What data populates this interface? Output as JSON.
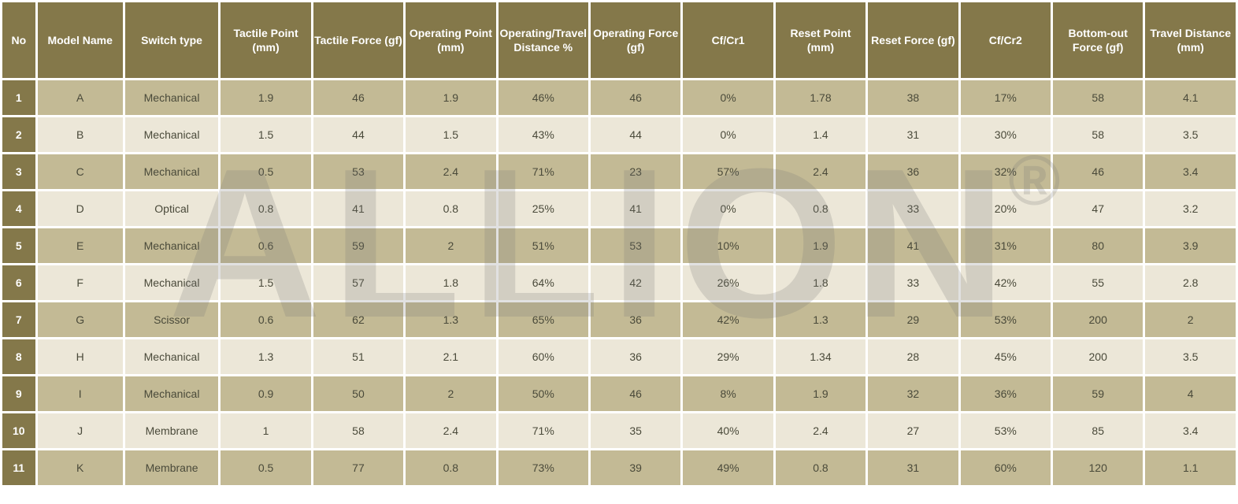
{
  "colors": {
    "header_bg": "#84784a",
    "rownum_bg": "#84784a",
    "odd_bg": "#c3ba95",
    "even_bg": "#ece7d8",
    "text": "#4a4a3a"
  },
  "watermark": {
    "text": "ALLION",
    "symbol": "®"
  },
  "columns": [
    "No",
    "Model Name",
    "Switch type",
    "Tactile Point (mm)",
    "Tactile Force (gf)",
    "Operating Point (mm)",
    "Operating/Travel Distance %",
    "Operating Force (gf)",
    "Cf/Cr1",
    "Reset Point (mm)",
    "Reset Force (gf)",
    "Cf/Cr2",
    "Bottom-out Force (gf)",
    "Travel Distance (mm)"
  ],
  "rows": [
    {
      "no": "1",
      "model": "A",
      "switch": "Mechanical",
      "tp": "1.9",
      "tf": "46",
      "op": "1.9",
      "otd": "46%",
      "of": "46",
      "cf1": "0%",
      "rp": "1.78",
      "rf": "38",
      "cf2": "17%",
      "bof": "58",
      "td": "4.1"
    },
    {
      "no": "2",
      "model": "B",
      "switch": "Mechanical",
      "tp": "1.5",
      "tf": "44",
      "op": "1.5",
      "otd": "43%",
      "of": "44",
      "cf1": "0%",
      "rp": "1.4",
      "rf": "31",
      "cf2": "30%",
      "bof": "58",
      "td": "3.5"
    },
    {
      "no": "3",
      "model": "C",
      "switch": "Mechanical",
      "tp": "0.5",
      "tf": "53",
      "op": "2.4",
      "otd": "71%",
      "of": "23",
      "cf1": "57%",
      "rp": "2.4",
      "rf": "36",
      "cf2": "32%",
      "bof": "46",
      "td": "3.4"
    },
    {
      "no": "4",
      "model": "D",
      "switch": "Optical",
      "tp": "0.8",
      "tf": "41",
      "op": "0.8",
      "otd": "25%",
      "of": "41",
      "cf1": "0%",
      "rp": "0.8",
      "rf": "33",
      "cf2": "20%",
      "bof": "47",
      "td": "3.2"
    },
    {
      "no": "5",
      "model": "E",
      "switch": "Mechanical",
      "tp": "0.6",
      "tf": "59",
      "op": "2",
      "otd": "51%",
      "of": "53",
      "cf1": "10%",
      "rp": "1.9",
      "rf": "41",
      "cf2": "31%",
      "bof": "80",
      "td": "3.9"
    },
    {
      "no": "6",
      "model": "F",
      "switch": "Mechanical",
      "tp": "1.5",
      "tf": "57",
      "op": "1.8",
      "otd": "64%",
      "of": "42",
      "cf1": "26%",
      "rp": "1.8",
      "rf": "33",
      "cf2": "42%",
      "bof": "55",
      "td": "2.8"
    },
    {
      "no": "7",
      "model": "G",
      "switch": "Scissor",
      "tp": "0.6",
      "tf": "62",
      "op": "1.3",
      "otd": "65%",
      "of": "36",
      "cf1": "42%",
      "rp": "1.3",
      "rf": "29",
      "cf2": "53%",
      "bof": "200",
      "td": "2"
    },
    {
      "no": "8",
      "model": "H",
      "switch": "Mechanical",
      "tp": "1.3",
      "tf": "51",
      "op": "2.1",
      "otd": "60%",
      "of": "36",
      "cf1": "29%",
      "rp": "1.34",
      "rf": "28",
      "cf2": "45%",
      "bof": "200",
      "td": "3.5"
    },
    {
      "no": "9",
      "model": "I",
      "switch": "Mechanical",
      "tp": "0.9",
      "tf": "50",
      "op": "2",
      "otd": "50%",
      "of": "46",
      "cf1": "8%",
      "rp": "1.9",
      "rf": "32",
      "cf2": "36%",
      "bof": "59",
      "td": "4"
    },
    {
      "no": "10",
      "model": "J",
      "switch": "Membrane",
      "tp": "1",
      "tf": "58",
      "op": "2.4",
      "otd": "71%",
      "of": "35",
      "cf1": "40%",
      "rp": "2.4",
      "rf": "27",
      "cf2": "53%",
      "bof": "85",
      "td": "3.4"
    },
    {
      "no": "11",
      "model": "K",
      "switch": "Membrane",
      "tp": "0.5",
      "tf": "77",
      "op": "0.8",
      "otd": "73%",
      "of": "39",
      "cf1": "49%",
      "rp": "0.8",
      "rf": "31",
      "cf2": "60%",
      "bof": "120",
      "td": "1.1"
    }
  ]
}
